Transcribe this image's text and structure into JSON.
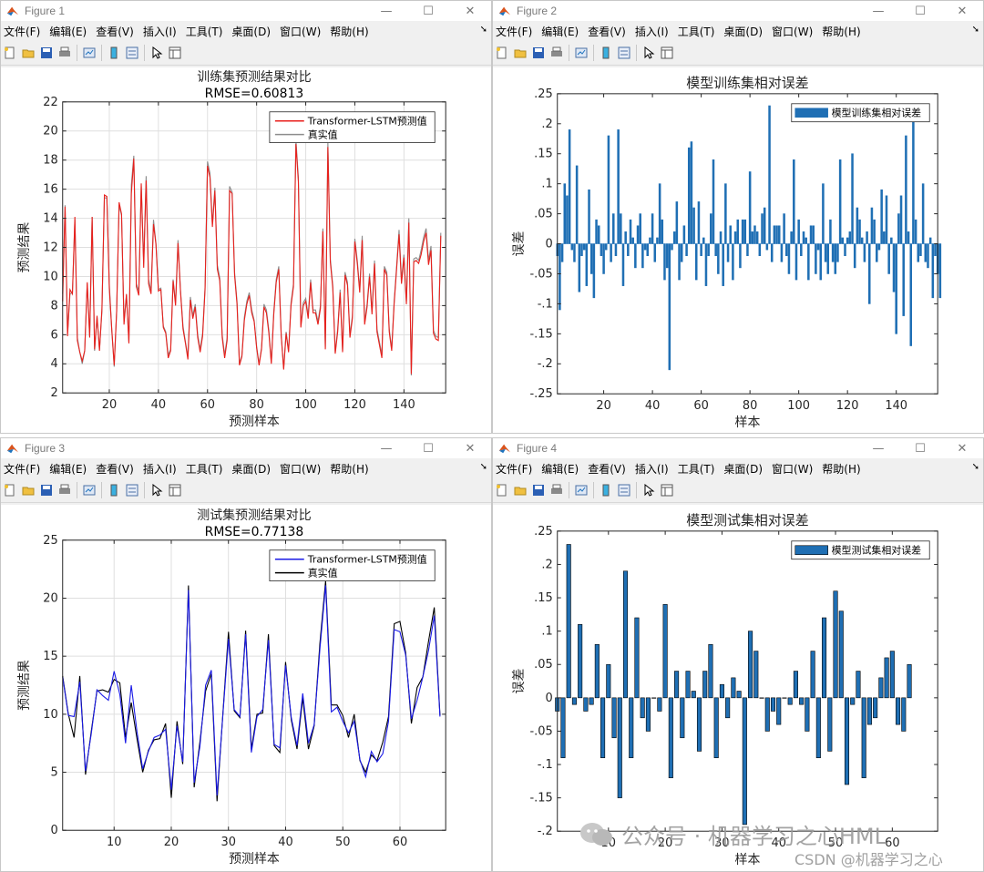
{
  "menu": [
    "文件(F)",
    "编辑(E)",
    "查看(V)",
    "插入(I)",
    "工具(T)",
    "桌面(D)",
    "窗口(W)",
    "帮助(H)"
  ],
  "window_controls": {
    "minimize": "—",
    "maximize": "☐",
    "close": "✕"
  },
  "watermark": {
    "wechat": "公众号 · 机器学习之心HML",
    "csdn": "CSDN @机器学习之心"
  },
  "figures": [
    {
      "title": "Figure 1",
      "chart_data": {
        "type": "line",
        "title": "训练集预测结果对比",
        "subtitle": "RMSE=0.60813",
        "xlabel": "预测样本",
        "ylabel": "预测结果",
        "xlim": [
          1,
          157
        ],
        "ylim": [
          2,
          22
        ],
        "xticks": [
          20,
          40,
          60,
          80,
          100,
          120,
          140
        ],
        "yticks": [
          2,
          4,
          6,
          8,
          10,
          12,
          14,
          16,
          18,
          20,
          22
        ],
        "grid": true,
        "legend_position": "top-right",
        "series": [
          {
            "name": "Transformer-LSTM预测值",
            "color": "#e8201c",
            "values": [
              8.3,
              14.8,
              5.9,
              9.1,
              8.8,
              14.1,
              5.6,
              4.8,
              4.2,
              4.9,
              9.6,
              5.8,
              14.1,
              5.0,
              7.3,
              4.9,
              7.8,
              15.6,
              15.5,
              9.2,
              6.4,
              3.9,
              7.6,
              15.1,
              14.3,
              6.7,
              8.8,
              5.4,
              15.7,
              18.1,
              9.3,
              8.7,
              16.4,
              10.6,
              16.6,
              9.5,
              8.8,
              13.6,
              12.2,
              9.0,
              9.1,
              6.5,
              6.1,
              4.4,
              4.9,
              9.7,
              8.0,
              12.3,
              9.0,
              6.4,
              5.4,
              4.3,
              8.4,
              7.1,
              7.9,
              5.8,
              4.8,
              5.9,
              9.1,
              17.6,
              16.8,
              13.4,
              15.9,
              10.5,
              9.7,
              5.8,
              4.4,
              5.6,
              15.9,
              15.7,
              10.1,
              8.1,
              3.9,
              4.5,
              7.0,
              8.1,
              8.7,
              7.5,
              6.9,
              5.1,
              3.9,
              5.0,
              7.9,
              7.5,
              6.1,
              4.0,
              7.4,
              9.6,
              10.5,
              5.9,
              3.6,
              6.1,
              4.8,
              8.0,
              9.3,
              19.1,
              16.5,
              6.5,
              8.0,
              8.3,
              7.1,
              9.6,
              7.5,
              7.5,
              6.7,
              7.8,
              13.1,
              5.0,
              18.9,
              11.0,
              9.2,
              4.7,
              6.2,
              8.9,
              4.8,
              10.1,
              9.4,
              5.8,
              7.1,
              12.4,
              10.9,
              8.9,
              12.5,
              6.7,
              7.9,
              10.0,
              7.4,
              10.9,
              6.2,
              5.3,
              4.4,
              10.5,
              10.1,
              6.2,
              4.9,
              8.1,
              10.5,
              12.9,
              9.5,
              11.3,
              8.1,
              13.7,
              3.3,
              11.0,
              11.1,
              10.9,
              11.5,
              12.4,
              13.0,
              10.8,
              11.8,
              6.1,
              5.7,
              5.6,
              12.8
            ]
          },
          {
            "name": "真实值",
            "color": "#8c8c8c",
            "values": [
              8.8,
              14.9,
              6.1,
              8.8,
              8.9,
              13.9,
              5.8,
              4.8,
              4.0,
              4.9,
              9.5,
              5.9,
              14.1,
              4.9,
              7.2,
              5.0,
              7.6,
              15.4,
              15.4,
              9.5,
              6.3,
              3.8,
              7.6,
              14.9,
              14.2,
              6.9,
              8.7,
              5.5,
              16.3,
              18.3,
              9.5,
              9.0,
              16.2,
              11.0,
              16.9,
              9.8,
              9.0,
              13.9,
              12.3,
              9.1,
              9.2,
              6.6,
              6.2,
              4.6,
              5.0,
              9.8,
              8.2,
              12.5,
              9.1,
              6.6,
              5.5,
              4.5,
              8.6,
              7.3,
              8.1,
              6.0,
              5.0,
              6.1,
              9.3,
              17.9,
              17.1,
              13.6,
              16.1,
              10.8,
              9.9,
              6.0,
              4.6,
              5.8,
              16.2,
              15.8,
              10.3,
              8.3,
              4.0,
              4.6,
              7.2,
              8.3,
              8.9,
              7.7,
              7.0,
              5.2,
              4.0,
              5.1,
              8.1,
              7.7,
              6.3,
              4.1,
              7.6,
              9.8,
              10.7,
              6.0,
              3.7,
              6.2,
              4.9,
              8.2,
              9.5,
              19.4,
              16.8,
              6.7,
              8.2,
              8.5,
              7.3,
              9.8,
              7.7,
              7.7,
              6.9,
              8.0,
              13.3,
              5.1,
              19.2,
              11.2,
              9.4,
              4.8,
              6.4,
              9.1,
              4.9,
              10.3,
              9.6,
              6.0,
              7.3,
              12.6,
              11.1,
              9.1,
              12.8,
              6.9,
              8.1,
              10.2,
              7.6,
              11.1,
              6.4,
              5.5,
              4.6,
              10.7,
              10.3,
              6.4,
              5.0,
              8.3,
              10.7,
              13.2,
              9.8,
              11.5,
              8.3,
              14.0,
              3.2,
              11.2,
              11.3,
              11.1,
              11.8,
              12.7,
              13.3,
              11.1,
              12.1,
              6.3,
              5.9,
              5.8,
              13.0
            ]
          }
        ]
      }
    },
    {
      "title": "Figure 2",
      "chart_data": {
        "type": "bar",
        "title": "模型训练集相对误差",
        "xlabel": "样本",
        "ylabel": "误差",
        "xlim": [
          1,
          157
        ],
        "ylim": [
          -0.25,
          0.25
        ],
        "xticks": [
          20,
          40,
          60,
          80,
          100,
          120,
          140
        ],
        "yticks": [
          -0.25,
          -0.2,
          -0.15,
          -0.1,
          -0.05,
          0,
          0.05,
          0.1,
          0.15,
          0.2,
          0.25
        ],
        "grid": false,
        "legend_position": "top-right",
        "series": [
          {
            "name": "模型训练集相对误差",
            "color": "#1f6fb4",
            "edge": "#1f6fb4",
            "values": [
              -0.02,
              -0.11,
              -0.03,
              0.1,
              0.08,
              0.19,
              -0.01,
              -0.03,
              0.13,
              -0.08,
              -0.02,
              -0.01,
              -0.07,
              0.09,
              -0.05,
              -0.09,
              0.04,
              0.03,
              -0.02,
              -0.05,
              -0.01,
              0.18,
              -0.03,
              0.05,
              -0.02,
              0.19,
              0.05,
              -0.07,
              0.02,
              -0.02,
              0.04,
              0.01,
              -0.04,
              0.03,
              0.05,
              -0.04,
              -0.01,
              -0.02,
              0.01,
              0.05,
              -0.03,
              0.01,
              0.1,
              0.04,
              -0.06,
              -0.04,
              -0.21,
              -0.01,
              0.02,
              0.07,
              -0.06,
              -0.03,
              0.03,
              -0.02,
              0.16,
              0.17,
              0.06,
              -0.06,
              0.07,
              -0.02,
              0.01,
              -0.07,
              -0.02,
              0.05,
              0.14,
              -0.02,
              -0.05,
              0.02,
              -0.07,
              0.1,
              -0.03,
              0.03,
              -0.06,
              0.02,
              0.04,
              -0.04,
              0.04,
              0.04,
              -0.02,
              0.12,
              0.02,
              0.03,
              0.02,
              -0.02,
              0.05,
              0.06,
              -0.01,
              0.23,
              -0.03,
              0.03,
              0.03,
              0.03,
              -0.03,
              0.05,
              -0.02,
              -0.05,
              0.02,
              0.14,
              -0.06,
              0.04,
              -0.02,
              0.02,
              0.01,
              -0.06,
              0.03,
              0.03,
              -0.05,
              -0.01,
              -0.06,
              0.1,
              -0.03,
              -0.05,
              0.04,
              -0.03,
              -0.05,
              -0.03,
              0.14,
              0.01,
              -0.02,
              0.01,
              0.02,
              0.15,
              -0.04,
              0.06,
              0.04,
              0.01,
              -0.03,
              0.02,
              -0.1,
              0.06,
              0.04,
              -0.03,
              -0.01,
              0.09,
              0.02,
              0.08,
              -0.05,
              0.01,
              -0.08,
              -0.15,
              0.05,
              0.08,
              -0.12,
              0.18,
              0.02,
              -0.17,
              0.21,
              0.04,
              -0.03,
              -0.02,
              0.1,
              -0.03,
              -0.04,
              0.01,
              -0.09,
              -0.02,
              -0.05,
              -0.09
            ]
          }
        ]
      }
    },
    {
      "title": "Figure 3",
      "chart_data": {
        "type": "line",
        "title": "测试集预测结果对比",
        "subtitle": "RMSE=0.77138",
        "xlabel": "预测样本",
        "ylabel": "预测结果",
        "xlim": [
          1,
          68
        ],
        "ylim": [
          0,
          25
        ],
        "xticks": [
          10,
          20,
          30,
          40,
          50,
          60
        ],
        "yticks": [
          0,
          5,
          10,
          15,
          20,
          25
        ],
        "grid": true,
        "legend_position": "top-right",
        "series": [
          {
            "name": "Transformer-LSTM预测值",
            "color": "#1a1ae6",
            "values": [
              13.2,
              9.9,
              9.8,
              12.8,
              5.1,
              8.3,
              12.1,
              11.6,
              11.2,
              13.7,
              11.7,
              7.5,
              12.5,
              8.5,
              5.3,
              6.8,
              8.0,
              8.2,
              8.7,
              3.5,
              9.0,
              5.9,
              20.7,
              4.1,
              7.2,
              12.5,
              13.8,
              3.0,
              9.8,
              16.5,
              10.4,
              9.8,
              16.9,
              6.7,
              9.8,
              10.4,
              16.4,
              7.4,
              7.1,
              14.2,
              9.7,
              7.3,
              11.8,
              7.5,
              9.1,
              15.6,
              21.1,
              10.2,
              10.6,
              9.4,
              8.4,
              9.4,
              6.1,
              4.6,
              6.8,
              5.9,
              6.6,
              9.4,
              17.3,
              17.1,
              15.1,
              9.6,
              11.2,
              13.2,
              15.5,
              18.5,
              9.8
            ]
          },
          {
            "name": "真实值",
            "color": "#000000",
            "values": [
              13.3,
              10.0,
              8.0,
              13.3,
              4.8,
              8.5,
              12.0,
              12.1,
              11.9,
              13.0,
              12.7,
              8.0,
              11.0,
              7.9,
              5.0,
              6.9,
              7.8,
              7.9,
              9.2,
              2.8,
              9.4,
              5.7,
              21.1,
              3.7,
              7.6,
              12.0,
              13.5,
              2.5,
              9.9,
              17.1,
              10.3,
              9.7,
              17.2,
              7.0,
              10.0,
              10.1,
              16.9,
              7.3,
              6.7,
              14.5,
              9.5,
              7.0,
              11.4,
              7.0,
              9.0,
              16.1,
              21.5,
              10.8,
              10.8,
              9.9,
              8.0,
              10.0,
              6.0,
              5.0,
              6.5,
              6.0,
              7.6,
              9.8,
              17.8,
              18.0,
              15.3,
              9.2,
              12.3,
              13.2,
              16.3,
              19.2,
              9.9
            ]
          }
        ]
      }
    },
    {
      "title": "Figure 4",
      "chart_data": {
        "type": "bar",
        "title": "模型测试集相对误差",
        "xlabel": "样本",
        "ylabel": "误差",
        "xlim": [
          1,
          68
        ],
        "ylim": [
          -0.2,
          0.25
        ],
        "xticks": [
          10,
          20,
          30,
          40,
          50,
          60
        ],
        "yticks": [
          -0.2,
          -0.15,
          -0.1,
          -0.05,
          0,
          0.05,
          0.1,
          0.15,
          0.2,
          0.25
        ],
        "grid": false,
        "legend_position": "top-right",
        "series": [
          {
            "name": "模型测试集相对误差",
            "color": "#1f6fb4",
            "edge": "#000000",
            "values": [
              -0.02,
              -0.09,
              0.23,
              -0.01,
              0.11,
              -0.02,
              -0.01,
              0.08,
              -0.09,
              0.05,
              -0.06,
              -0.15,
              0.19,
              -0.09,
              0.12,
              -0.03,
              -0.05,
              0.0,
              -0.02,
              0.14,
              -0.12,
              0.04,
              -0.06,
              0.04,
              0.01,
              -0.08,
              0.04,
              0.08,
              -0.09,
              0.02,
              -0.03,
              0.03,
              0.01,
              -0.19,
              0.1,
              0.07,
              0.0,
              -0.05,
              -0.02,
              -0.04,
              0.0,
              -0.01,
              0.04,
              -0.01,
              -0.05,
              0.07,
              -0.09,
              0.12,
              -0.08,
              0.16,
              0.13,
              -0.13,
              -0.01,
              0.04,
              -0.12,
              -0.04,
              -0.03,
              0.03,
              0.06,
              0.07,
              -0.04,
              -0.05,
              0.05
            ]
          }
        ]
      }
    }
  ]
}
